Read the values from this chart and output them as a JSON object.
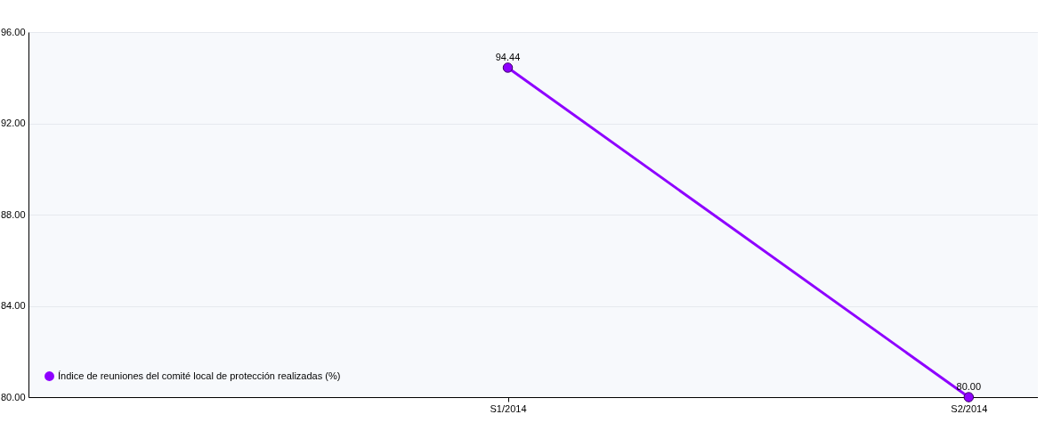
{
  "chart_data": {
    "type": "line",
    "categories": [
      "S1/2014",
      "S2/2014"
    ],
    "series": [
      {
        "name": "Índice de reuniones del comité local de protección realizadas (%)",
        "color": "#8e00ff",
        "values": [
          94.44,
          80.0
        ],
        "value_labels": [
          "94.44",
          "80.00"
        ]
      }
    ],
    "ylim": [
      80,
      96
    ],
    "yticks": [
      {
        "value": 80,
        "label": "80.00"
      },
      {
        "value": 84,
        "label": "84.00"
      },
      {
        "value": 88,
        "label": "88.00"
      },
      {
        "value": 92,
        "label": "92.00"
      },
      {
        "value": 96,
        "label": "96.00"
      }
    ],
    "grid": "y",
    "legend": "bottom",
    "marker": "circle",
    "line_style": "solid"
  }
}
